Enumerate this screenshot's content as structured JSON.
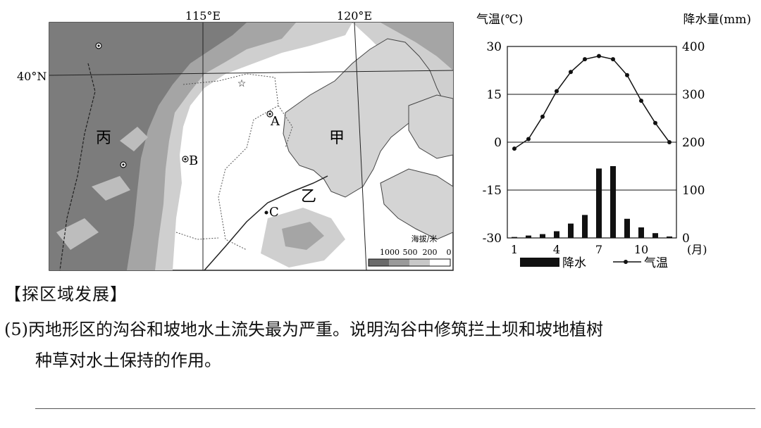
{
  "map": {
    "lon_labels": [
      "115°E",
      "120°E"
    ],
    "lat_label": "40°N",
    "region_labels": {
      "jia": "甲",
      "yi": "乙",
      "bing": "丙"
    },
    "points": {
      "A": "A",
      "B": "B",
      "C": "C"
    },
    "legend": {
      "title": "海拔/米",
      "values": [
        "1000",
        "500",
        "200",
        "0"
      ],
      "colors": [
        "#6b6b6b",
        "#9a9a9a",
        "#c8c8c8",
        "#ffffff"
      ]
    },
    "colors": {
      "mountain_dark": "#7c7c7c",
      "mountain_mid": "#a5a5a5",
      "hill": "#cfcfcf",
      "sea": "#d4d4d4",
      "plain": "#ffffff"
    }
  },
  "chart_data": {
    "type": "bar+line",
    "ylabel_left": "气温(℃)",
    "ylabel_right": "降水量(mm)",
    "xlabel": "(月)",
    "x_ticks": [
      "1",
      "4",
      "7",
      "10"
    ],
    "y_left_ticks": [
      "30",
      "15",
      "0",
      "-15",
      "-30"
    ],
    "y_right_ticks": [
      "400",
      "300",
      "200",
      "100",
      "0"
    ],
    "ylim_left": [
      -30,
      30
    ],
    "ylim_right": [
      0,
      400
    ],
    "months": [
      1,
      2,
      3,
      4,
      5,
      6,
      7,
      8,
      9,
      10,
      11,
      12
    ],
    "series": [
      {
        "name": "降水",
        "kind": "bar",
        "axis": "right",
        "values": [
          2,
          5,
          8,
          14,
          30,
          48,
          145,
          150,
          40,
          22,
          10,
          3
        ]
      },
      {
        "name": "气温",
        "kind": "line",
        "axis": "left",
        "values": [
          -2,
          1,
          8,
          16,
          22,
          26,
          27,
          26,
          21,
          13,
          6,
          0
        ]
      }
    ],
    "legend": [
      "降水",
      "气温"
    ],
    "grid": true
  },
  "text": {
    "section_title": "【探区域发展】",
    "question_number": "(5)",
    "question_line1": "丙地形区的沟谷和坡地水土流失最为严重。说明沟谷中修筑拦土坝和坡地植树",
    "question_line2": "种草对水土保持的作用。"
  }
}
